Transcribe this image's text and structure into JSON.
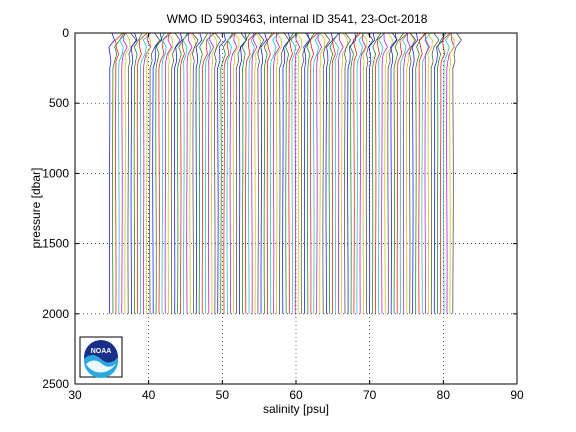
{
  "chart_data": {
    "type": "line",
    "title": "WMO ID 5903463, internal ID 3541, 23-Oct-2018",
    "xlabel": "salinity [psu]",
    "ylabel": "pressure [dbar]",
    "xlim": [
      30,
      90
    ],
    "ylim": [
      0,
      2500
    ],
    "y_reversed": true,
    "grid": true,
    "grid_style": "dotted",
    "xticks": [
      30,
      40,
      50,
      60,
      70,
      80,
      90
    ],
    "yticks": [
      0,
      500,
      1000,
      1500,
      2000,
      2500
    ],
    "profile_offset_start": 34.7,
    "profile_offset_step": 0.42,
    "profile_count": 112,
    "profile_max_pressure": 2000,
    "series_colors": [
      "#0000ff",
      "#008000",
      "#ff0000",
      "#00bfbf",
      "#bf00bf",
      "#bfbf00",
      "#404040"
    ],
    "logo_icon": "noaa-logo-icon"
  },
  "logo": {
    "text": "NOAA"
  }
}
